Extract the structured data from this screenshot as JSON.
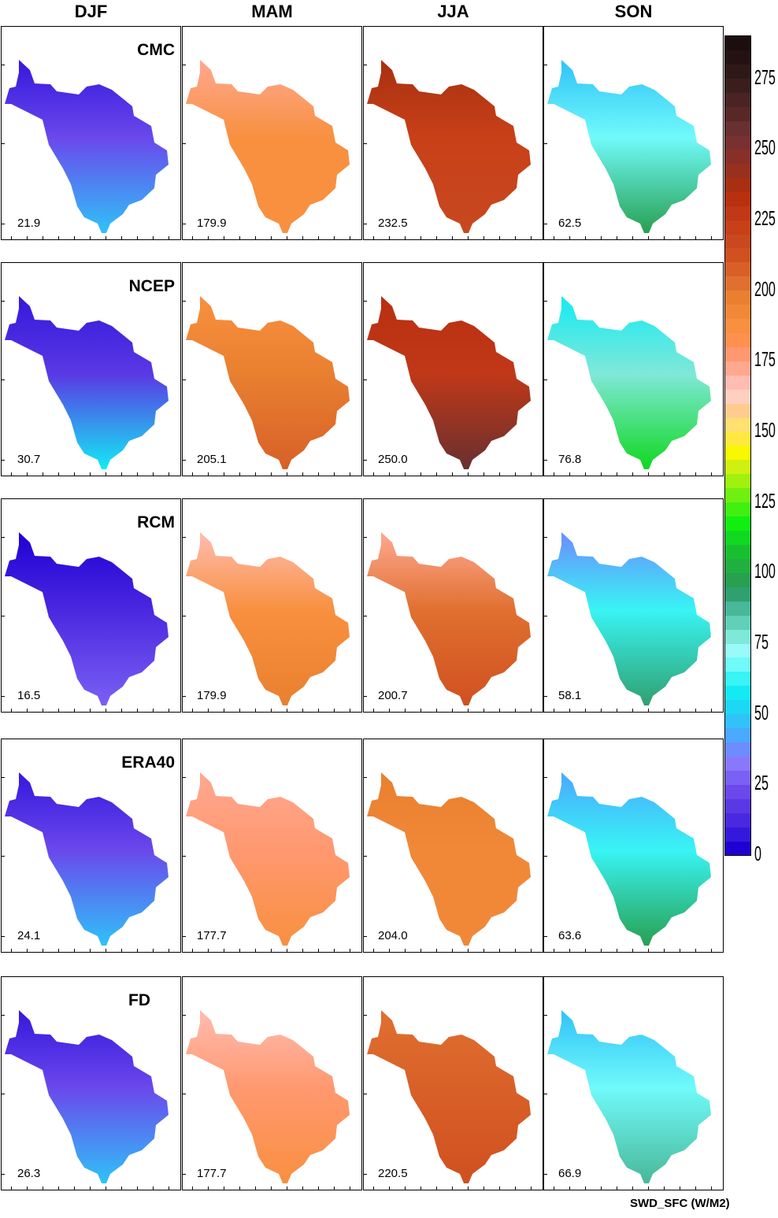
{
  "seasons": [
    "DJF",
    "MAM",
    "JJA",
    "SON"
  ],
  "models": [
    "CMC",
    "NCEP",
    "RCM",
    "ERA40",
    "FD"
  ],
  "units_label": "SWD_SFC (W/M2)",
  "means": {
    "CMC": [
      "21.9",
      "179.9",
      "232.5",
      "62.5"
    ],
    "NCEP": [
      "30.7",
      "205.1",
      "250.0",
      "76.8"
    ],
    "RCM": [
      "16.5",
      "179.9",
      "200.7",
      "58.1"
    ],
    "ERA40": [
      "24.1",
      "177.7",
      "204.0",
      "63.6"
    ],
    "FD": [
      "26.3",
      "177.7",
      "220.5",
      "66.9"
    ]
  },
  "colorbar": {
    "min": 0,
    "max": 290,
    "step": 5,
    "labels": [
      "0",
      "25",
      "50",
      "75",
      "100",
      "125",
      "150",
      "175",
      "200",
      "225",
      "250",
      "275"
    ],
    "colors": [
      "#1f00d4",
      "#3518dc",
      "#4a28e0",
      "#5a38e4",
      "#6a48ec",
      "#7a60f4",
      "#8a78fc",
      "#6c8cff",
      "#4aa8ff",
      "#30c2f8",
      "#1cd8f4",
      "#14eaf4",
      "#38f4f4",
      "#70fafa",
      "#9afafa",
      "#80e8d8",
      "#60d0b8",
      "#48b898",
      "#30a070",
      "#28a050",
      "#20b040",
      "#18c030",
      "#10d820",
      "#10f010",
      "#40f010",
      "#70f010",
      "#a0f010",
      "#d0f010",
      "#f8f800",
      "#ffe840",
      "#ffe070",
      "#ffcc90",
      "#ffd0c0",
      "#ffbcb0",
      "#ffa890",
      "#ff9870",
      "#ff9050",
      "#f89040",
      "#f08838",
      "#e88030",
      "#e07030",
      "#d86028",
      "#d05020",
      "#c84820",
      "#c84018",
      "#c03818",
      "#b83010",
      "#a83010",
      "#983020",
      "#883028",
      "#783030",
      "#683030",
      "#582828",
      "#4a2424",
      "#3a1e1e",
      "#2e1818",
      "#241212",
      "#1c0e0e"
    ]
  },
  "map_fields": {
    "CMC": [
      {
        "base": "#6a48ec",
        "top": "#3518dc",
        "bottom": "#30c2f8"
      },
      {
        "base": "#f89040",
        "top": "#ffa890",
        "bottom": "#f89040"
      },
      {
        "base": "#c84018",
        "top": "#a83010",
        "bottom": "#c84820"
      },
      {
        "base": "#70fafa",
        "top": "#30c2f8",
        "bottom": "#28a050"
      }
    ],
    "NCEP": [
      {
        "base": "#5a38e4",
        "top": "#3518dc",
        "bottom": "#14eaf4"
      },
      {
        "base": "#e88030",
        "top": "#f89040",
        "bottom": "#d86028"
      },
      {
        "base": "#c03818",
        "top": "#b83010",
        "bottom": "#683030"
      },
      {
        "base": "#80e8d8",
        "top": "#14eaf4",
        "bottom": "#10d820"
      }
    ],
    "RCM": [
      {
        "base": "#4a28e0",
        "top": "#1f00d4",
        "bottom": "#7a60f4"
      },
      {
        "base": "#f89040",
        "top": "#ffbcb0",
        "bottom": "#e88030"
      },
      {
        "base": "#e07030",
        "top": "#ffa890",
        "bottom": "#d05020"
      },
      {
        "base": "#38f4f4",
        "top": "#6c8cff",
        "bottom": "#30a070"
      }
    ],
    "ERA40": [
      {
        "base": "#6a48ec",
        "top": "#3518dc",
        "bottom": "#30c2f8"
      },
      {
        "base": "#ff9870",
        "top": "#ffa890",
        "bottom": "#f89040"
      },
      {
        "base": "#f08838",
        "top": "#e88030",
        "bottom": "#f08838"
      },
      {
        "base": "#38f4f4",
        "top": "#4aa8ff",
        "bottom": "#28a050"
      }
    ],
    "FD": [
      {
        "base": "#6a48ec",
        "top": "#3518dc",
        "bottom": "#30c2f8"
      },
      {
        "base": "#ff9870",
        "top": "#ffbcb0",
        "bottom": "#f89040"
      },
      {
        "base": "#d86028",
        "top": "#e07030",
        "bottom": "#d05020"
      },
      {
        "base": "#70fafa",
        "top": "#30c2f8",
        "bottom": "#48b898"
      }
    ]
  }
}
